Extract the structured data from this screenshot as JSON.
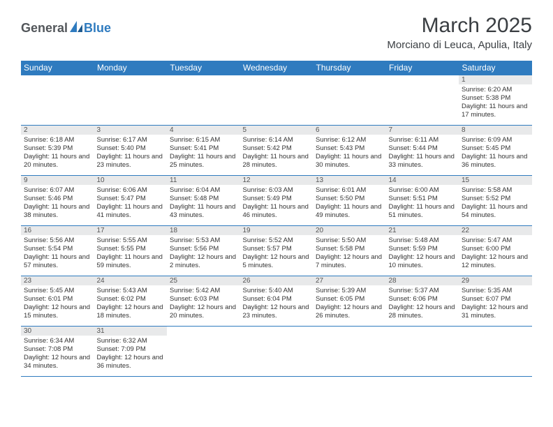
{
  "logo": {
    "text1": "General",
    "text2": "Blue"
  },
  "title": "March 2025",
  "location": "Morciano di Leuca, Apulia, Italy",
  "colors": {
    "header_bg": "#2f7bbf",
    "header_text": "#ffffff",
    "daynum_bg": "#e8e9ea",
    "border": "#2f7bbf",
    "body_text": "#333333",
    "title_text": "#3a3e42",
    "logo_gray": "#52565a",
    "logo_blue": "#2f7bbf"
  },
  "weekdays": [
    "Sunday",
    "Monday",
    "Tuesday",
    "Wednesday",
    "Thursday",
    "Friday",
    "Saturday"
  ],
  "weeks": [
    [
      null,
      null,
      null,
      null,
      null,
      null,
      {
        "n": "1",
        "sr": "Sunrise: 6:20 AM",
        "ss": "Sunset: 5:38 PM",
        "dl": "Daylight: 11 hours and 17 minutes."
      }
    ],
    [
      {
        "n": "2",
        "sr": "Sunrise: 6:18 AM",
        "ss": "Sunset: 5:39 PM",
        "dl": "Daylight: 11 hours and 20 minutes."
      },
      {
        "n": "3",
        "sr": "Sunrise: 6:17 AM",
        "ss": "Sunset: 5:40 PM",
        "dl": "Daylight: 11 hours and 23 minutes."
      },
      {
        "n": "4",
        "sr": "Sunrise: 6:15 AM",
        "ss": "Sunset: 5:41 PM",
        "dl": "Daylight: 11 hours and 25 minutes."
      },
      {
        "n": "5",
        "sr": "Sunrise: 6:14 AM",
        "ss": "Sunset: 5:42 PM",
        "dl": "Daylight: 11 hours and 28 minutes."
      },
      {
        "n": "6",
        "sr": "Sunrise: 6:12 AM",
        "ss": "Sunset: 5:43 PM",
        "dl": "Daylight: 11 hours and 30 minutes."
      },
      {
        "n": "7",
        "sr": "Sunrise: 6:11 AM",
        "ss": "Sunset: 5:44 PM",
        "dl": "Daylight: 11 hours and 33 minutes."
      },
      {
        "n": "8",
        "sr": "Sunrise: 6:09 AM",
        "ss": "Sunset: 5:45 PM",
        "dl": "Daylight: 11 hours and 36 minutes."
      }
    ],
    [
      {
        "n": "9",
        "sr": "Sunrise: 6:07 AM",
        "ss": "Sunset: 5:46 PM",
        "dl": "Daylight: 11 hours and 38 minutes."
      },
      {
        "n": "10",
        "sr": "Sunrise: 6:06 AM",
        "ss": "Sunset: 5:47 PM",
        "dl": "Daylight: 11 hours and 41 minutes."
      },
      {
        "n": "11",
        "sr": "Sunrise: 6:04 AM",
        "ss": "Sunset: 5:48 PM",
        "dl": "Daylight: 11 hours and 43 minutes."
      },
      {
        "n": "12",
        "sr": "Sunrise: 6:03 AM",
        "ss": "Sunset: 5:49 PM",
        "dl": "Daylight: 11 hours and 46 minutes."
      },
      {
        "n": "13",
        "sr": "Sunrise: 6:01 AM",
        "ss": "Sunset: 5:50 PM",
        "dl": "Daylight: 11 hours and 49 minutes."
      },
      {
        "n": "14",
        "sr": "Sunrise: 6:00 AM",
        "ss": "Sunset: 5:51 PM",
        "dl": "Daylight: 11 hours and 51 minutes."
      },
      {
        "n": "15",
        "sr": "Sunrise: 5:58 AM",
        "ss": "Sunset: 5:52 PM",
        "dl": "Daylight: 11 hours and 54 minutes."
      }
    ],
    [
      {
        "n": "16",
        "sr": "Sunrise: 5:56 AM",
        "ss": "Sunset: 5:54 PM",
        "dl": "Daylight: 11 hours and 57 minutes."
      },
      {
        "n": "17",
        "sr": "Sunrise: 5:55 AM",
        "ss": "Sunset: 5:55 PM",
        "dl": "Daylight: 11 hours and 59 minutes."
      },
      {
        "n": "18",
        "sr": "Sunrise: 5:53 AM",
        "ss": "Sunset: 5:56 PM",
        "dl": "Daylight: 12 hours and 2 minutes."
      },
      {
        "n": "19",
        "sr": "Sunrise: 5:52 AM",
        "ss": "Sunset: 5:57 PM",
        "dl": "Daylight: 12 hours and 5 minutes."
      },
      {
        "n": "20",
        "sr": "Sunrise: 5:50 AM",
        "ss": "Sunset: 5:58 PM",
        "dl": "Daylight: 12 hours and 7 minutes."
      },
      {
        "n": "21",
        "sr": "Sunrise: 5:48 AM",
        "ss": "Sunset: 5:59 PM",
        "dl": "Daylight: 12 hours and 10 minutes."
      },
      {
        "n": "22",
        "sr": "Sunrise: 5:47 AM",
        "ss": "Sunset: 6:00 PM",
        "dl": "Daylight: 12 hours and 12 minutes."
      }
    ],
    [
      {
        "n": "23",
        "sr": "Sunrise: 5:45 AM",
        "ss": "Sunset: 6:01 PM",
        "dl": "Daylight: 12 hours and 15 minutes."
      },
      {
        "n": "24",
        "sr": "Sunrise: 5:43 AM",
        "ss": "Sunset: 6:02 PM",
        "dl": "Daylight: 12 hours and 18 minutes."
      },
      {
        "n": "25",
        "sr": "Sunrise: 5:42 AM",
        "ss": "Sunset: 6:03 PM",
        "dl": "Daylight: 12 hours and 20 minutes."
      },
      {
        "n": "26",
        "sr": "Sunrise: 5:40 AM",
        "ss": "Sunset: 6:04 PM",
        "dl": "Daylight: 12 hours and 23 minutes."
      },
      {
        "n": "27",
        "sr": "Sunrise: 5:39 AM",
        "ss": "Sunset: 6:05 PM",
        "dl": "Daylight: 12 hours and 26 minutes."
      },
      {
        "n": "28",
        "sr": "Sunrise: 5:37 AM",
        "ss": "Sunset: 6:06 PM",
        "dl": "Daylight: 12 hours and 28 minutes."
      },
      {
        "n": "29",
        "sr": "Sunrise: 5:35 AM",
        "ss": "Sunset: 6:07 PM",
        "dl": "Daylight: 12 hours and 31 minutes."
      }
    ],
    [
      {
        "n": "30",
        "sr": "Sunrise: 6:34 AM",
        "ss": "Sunset: 7:08 PM",
        "dl": "Daylight: 12 hours and 34 minutes."
      },
      {
        "n": "31",
        "sr": "Sunrise: 6:32 AM",
        "ss": "Sunset: 7:09 PM",
        "dl": "Daylight: 12 hours and 36 minutes."
      },
      null,
      null,
      null,
      null,
      null
    ]
  ]
}
